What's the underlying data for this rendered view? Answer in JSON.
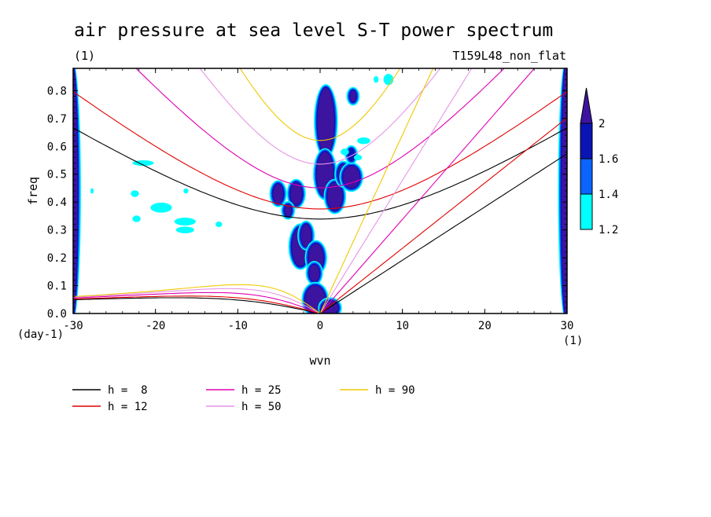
{
  "chart_data": {
    "type": "contour",
    "title": "air pressure at sea level S-T power spectrum",
    "units_label": "(1)",
    "run_label": "T159L48_non_flat",
    "xlabel": "wvn",
    "ylabel": "freq",
    "x_unit_label": "(1)",
    "y_unit_label": "(day-1)",
    "xlim": [
      -30,
      30
    ],
    "ylim": [
      0,
      0.88
    ],
    "x_ticks": [
      -30,
      -20,
      -10,
      0,
      10,
      20,
      30
    ],
    "y_ticks": [
      0.0,
      0.1,
      0.2,
      0.3,
      0.4,
      0.5,
      0.6,
      0.7,
      0.8
    ],
    "x_tick_labels": [
      "-30",
      "-20",
      "-10",
      "0",
      "10",
      "20",
      "30"
    ],
    "y_tick_labels": [
      "0.0",
      "0.1",
      "0.2",
      "0.3",
      "0.4",
      "0.5",
      "0.6",
      "0.7",
      "0.8"
    ],
    "colorbar": {
      "levels": [
        "1.2",
        "1.4",
        "1.6",
        "2"
      ],
      "colors": [
        "#00ffff",
        "#0a64ff",
        "#0a14b4",
        "#3c14a0"
      ]
    },
    "dispersion_curves": [
      {
        "name": "h =  8",
        "h": 8,
        "color": "#000000"
      },
      {
        "name": "h = 12",
        "h": 12,
        "color": "#e00000"
      },
      {
        "name": "h = 25",
        "h": 25,
        "color": "#e000b4"
      },
      {
        "name": "h = 50",
        "h": 50,
        "color": "#e696e6"
      },
      {
        "name": "h = 90",
        "h": 90,
        "color": "#f0c800"
      }
    ],
    "contour_regions": [
      {
        "x": 0.7,
        "y": 0.69,
        "rx": 1.0,
        "ry": 0.12,
        "level": 3
      },
      {
        "x": 0.6,
        "y": 0.5,
        "rx": 1.0,
        "ry": 0.08,
        "level": 3
      },
      {
        "x": 1.8,
        "y": 0.42,
        "rx": 0.9,
        "ry": 0.05,
        "level": 3
      },
      {
        "x": 2.8,
        "y": 0.5,
        "rx": 0.6,
        "ry": 0.035,
        "level": 3
      },
      {
        "x": 3.8,
        "y": 0.49,
        "rx": 1.0,
        "ry": 0.04,
        "level": 3
      },
      {
        "x": 3.8,
        "y": 0.57,
        "rx": 0.5,
        "ry": 0.025,
        "level": 2
      },
      {
        "x": 4.0,
        "y": 0.78,
        "rx": 0.35,
        "ry": 0.02,
        "level": 3
      },
      {
        "x": -2.9,
        "y": 0.43,
        "rx": 0.7,
        "ry": 0.04,
        "level": 3
      },
      {
        "x": -5.1,
        "y": 0.43,
        "rx": 0.6,
        "ry": 0.035,
        "level": 3
      },
      {
        "x": -3.9,
        "y": 0.37,
        "rx": 0.4,
        "ry": 0.02,
        "level": 3
      },
      {
        "x": -2.4,
        "y": 0.24,
        "rx": 1.0,
        "ry": 0.07,
        "level": 3
      },
      {
        "x": -1.7,
        "y": 0.28,
        "rx": 0.6,
        "ry": 0.04,
        "level": 3
      },
      {
        "x": -0.5,
        "y": 0.2,
        "rx": 0.9,
        "ry": 0.05,
        "level": 3
      },
      {
        "x": -0.7,
        "y": 0.145,
        "rx": 0.6,
        "ry": 0.03,
        "level": 3
      },
      {
        "x": -0.6,
        "y": 0.05,
        "rx": 1.2,
        "ry": 0.05,
        "level": 3
      },
      {
        "x": 1.2,
        "y": 0.02,
        "rx": 1.0,
        "ry": 0.025,
        "level": 3
      },
      {
        "x": -30,
        "y": 0.44,
        "rx": 0.5,
        "ry": 0.45,
        "level": 3
      },
      {
        "x": 29.8,
        "y": 0.44,
        "rx": 0.45,
        "ry": 0.45,
        "level": 3
      },
      {
        "x": -22.5,
        "y": 0.43,
        "rx": 0.5,
        "ry": 0.012,
        "level": 0
      },
      {
        "x": -19.3,
        "y": 0.38,
        "rx": 1.3,
        "ry": 0.018,
        "level": 0
      },
      {
        "x": -22.3,
        "y": 0.34,
        "rx": 0.5,
        "ry": 0.012,
        "level": 0
      },
      {
        "x": -16.4,
        "y": 0.33,
        "rx": 1.3,
        "ry": 0.014,
        "level": 0
      },
      {
        "x": -16.4,
        "y": 0.3,
        "rx": 1.1,
        "ry": 0.012,
        "level": 0
      },
      {
        "x": -21.5,
        "y": 0.54,
        "rx": 1.3,
        "ry": 0.01,
        "level": 0
      },
      {
        "x": -16.3,
        "y": 0.44,
        "rx": 0.3,
        "ry": 0.009,
        "level": 0
      },
      {
        "x": -12.3,
        "y": 0.32,
        "rx": 0.4,
        "ry": 0.01,
        "level": 0
      },
      {
        "x": 8.3,
        "y": 0.84,
        "rx": 0.6,
        "ry": 0.02,
        "level": 0
      },
      {
        "x": 6.8,
        "y": 0.84,
        "rx": 0.3,
        "ry": 0.012,
        "level": 0
      },
      {
        "x": 5.3,
        "y": 0.62,
        "rx": 0.8,
        "ry": 0.012,
        "level": 0
      },
      {
        "x": 3.0,
        "y": 0.58,
        "rx": 0.5,
        "ry": 0.012,
        "level": 0
      },
      {
        "x": 4.6,
        "y": 0.56,
        "rx": 0.5,
        "ry": 0.01,
        "level": 0
      },
      {
        "x": -27.7,
        "y": 0.44,
        "rx": 0.2,
        "ry": 0.01,
        "level": 0
      }
    ]
  }
}
